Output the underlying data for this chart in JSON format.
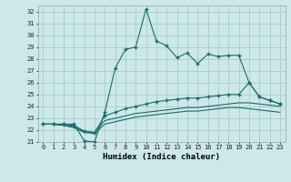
{
  "xlabel": "Humidex (Indice chaleur)",
  "bg_color": "#cce8e8",
  "grid_color": "#aacccc",
  "line_color": "#1a6b6b",
  "xlim": [
    -0.5,
    23.5
  ],
  "ylim": [
    21,
    32.5
  ],
  "yticks": [
    21,
    22,
    23,
    24,
    25,
    26,
    27,
    28,
    29,
    30,
    31,
    32
  ],
  "xticks": [
    0,
    1,
    2,
    3,
    4,
    5,
    6,
    7,
    8,
    9,
    10,
    11,
    12,
    13,
    14,
    15,
    16,
    17,
    18,
    19,
    20,
    21,
    22,
    23
  ],
  "series1_x": [
    0,
    1,
    2,
    3,
    4,
    5,
    6,
    7,
    8,
    9,
    10,
    11,
    12,
    13,
    14,
    15,
    16,
    17,
    18,
    19,
    20,
    21,
    22,
    23
  ],
  "series1_y": [
    22.5,
    22.5,
    22.5,
    22.5,
    21.1,
    21.0,
    23.5,
    27.2,
    28.8,
    29.0,
    32.2,
    29.5,
    29.1,
    28.1,
    28.5,
    27.6,
    28.4,
    28.2,
    28.3,
    28.3,
    26.0,
    24.8,
    24.5,
    24.2
  ],
  "series2_x": [
    0,
    1,
    2,
    3,
    4,
    5,
    6,
    7,
    8,
    9,
    10,
    11,
    12,
    13,
    14,
    15,
    16,
    17,
    18,
    19,
    20,
    21,
    22,
    23
  ],
  "series2_y": [
    22.5,
    22.5,
    22.5,
    22.4,
    21.9,
    21.8,
    23.2,
    23.5,
    23.8,
    24.0,
    24.2,
    24.4,
    24.5,
    24.6,
    24.7,
    24.7,
    24.8,
    24.9,
    25.0,
    25.0,
    26.0,
    24.8,
    24.5,
    24.2
  ],
  "series3_x": [
    0,
    1,
    2,
    3,
    4,
    5,
    6,
    7,
    8,
    9,
    10,
    11,
    12,
    13,
    14,
    15,
    16,
    17,
    18,
    19,
    20,
    21,
    22,
    23
  ],
  "series3_y": [
    22.5,
    22.5,
    22.4,
    22.3,
    21.9,
    21.8,
    22.8,
    23.0,
    23.2,
    23.4,
    23.5,
    23.6,
    23.7,
    23.8,
    23.9,
    23.9,
    24.0,
    24.1,
    24.2,
    24.3,
    24.3,
    24.2,
    24.1,
    24.0
  ],
  "series4_x": [
    0,
    1,
    2,
    3,
    4,
    5,
    6,
    7,
    8,
    9,
    10,
    11,
    12,
    13,
    14,
    15,
    16,
    17,
    18,
    19,
    20,
    21,
    22,
    23
  ],
  "series4_y": [
    22.5,
    22.5,
    22.4,
    22.2,
    21.8,
    21.7,
    22.5,
    22.7,
    22.9,
    23.1,
    23.2,
    23.3,
    23.4,
    23.5,
    23.6,
    23.6,
    23.7,
    23.8,
    23.9,
    23.9,
    23.8,
    23.7,
    23.6,
    23.5
  ]
}
